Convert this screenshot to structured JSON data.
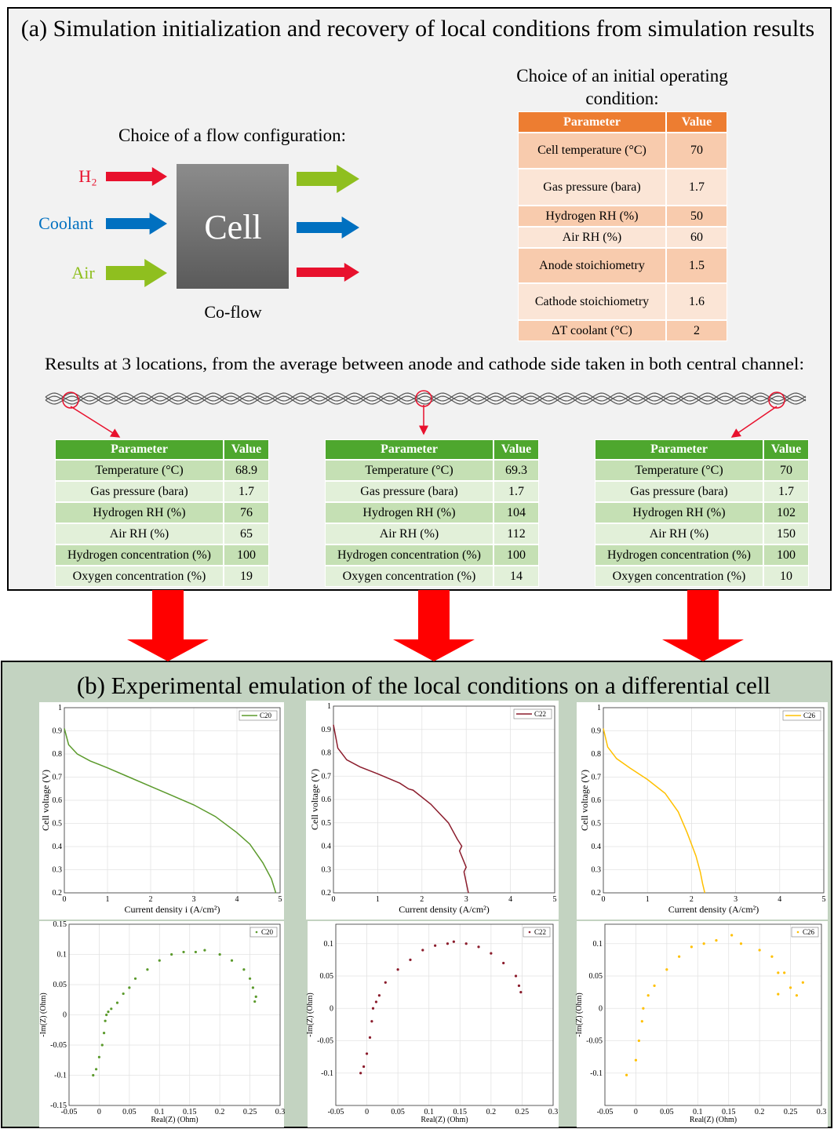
{
  "panel_a": {
    "title": "(a) Simulation initialization and recovery of local conditions from simulation results",
    "flow_heading": "Choice of a flow configuration:",
    "inlets": [
      "H₂",
      "Coolant",
      "Air"
    ],
    "cell_label": "Cell",
    "flow_type": "Co-flow",
    "operating_heading": "Choice of an initial operating condition:",
    "operating_table": {
      "header": [
        "Parameter",
        "Value"
      ],
      "rows": [
        [
          "Cell temperature (°C)",
          70
        ],
        [
          "Gas pressure (bara)",
          1.7
        ],
        [
          "Hydrogen RH (%)",
          50
        ],
        [
          "Air RH (%)",
          60
        ],
        [
          "Anode stoichiometry",
          1.5
        ],
        [
          "Cathode stoichiometry",
          1.6
        ],
        [
          "ΔT coolant (°C)",
          2
        ]
      ]
    },
    "results_heading": "Results at 3 locations, from the average between anode and cathode side taken in both central channel:",
    "location_tables": [
      {
        "header": [
          "Parameter",
          "Value"
        ],
        "rows": [
          [
            "Temperature (°C)",
            68.9
          ],
          [
            "Gas pressure (bara)",
            1.7
          ],
          [
            "Hydrogen RH (%)",
            76
          ],
          [
            "Air RH (%)",
            65
          ],
          [
            "Hydrogen concentration (%)",
            100
          ],
          [
            "Oxygen concentration (%)",
            19
          ]
        ]
      },
      {
        "header": [
          "Parameter",
          "Value"
        ],
        "rows": [
          [
            "Temperature (°C)",
            69.3
          ],
          [
            "Gas pressure (bara)",
            1.7
          ],
          [
            "Hydrogen RH (%)",
            104
          ],
          [
            "Air RH (%)",
            112
          ],
          [
            "Hydrogen concentration (%)",
            100
          ],
          [
            "Oxygen concentration (%)",
            14
          ]
        ]
      },
      {
        "header": [
          "Parameter",
          "Value"
        ],
        "rows": [
          [
            "Temperature (°C)",
            70
          ],
          [
            "Gas pressure (bara)",
            1.7
          ],
          [
            "Hydrogen RH (%)",
            102
          ],
          [
            "Air RH (%)",
            150
          ],
          [
            "Hydrogen concentration (%)",
            100
          ],
          [
            "Oxygen concentration (%)",
            10
          ]
        ]
      }
    ]
  },
  "panel_b": {
    "title": "(b) Experimental emulation of the local conditions on a differential cell"
  },
  "chart_data": [
    {
      "type": "line",
      "xlabel": "Current density i (A/cm²)",
      "ylabel": "Cell voltage (V)",
      "xlim": [
        0,
        5
      ],
      "ylim": [
        0.2,
        1
      ],
      "xticks": [
        0,
        1,
        2,
        3,
        4,
        5
      ],
      "yticks": [
        0.2,
        0.3,
        0.4,
        0.5,
        0.6,
        0.7,
        0.8,
        0.9,
        1
      ],
      "grid": true,
      "legend": "upper right",
      "x": [
        0,
        0.1,
        0.3,
        0.6,
        1,
        1.5,
        2,
        2.5,
        3,
        3.5,
        4,
        4.3,
        4.6,
        4.8,
        4.9
      ],
      "series": [
        {
          "name": "C20",
          "color": "#5b9a2c",
          "values": [
            0.91,
            0.84,
            0.8,
            0.77,
            0.74,
            0.7,
            0.66,
            0.62,
            0.58,
            0.53,
            0.46,
            0.41,
            0.33,
            0.26,
            0.2
          ]
        }
      ]
    },
    {
      "type": "line",
      "xlabel": "Current density (A/cm²)",
      "ylabel": "Cell voltage (V)",
      "xlim": [
        0,
        5
      ],
      "ylim": [
        0.2,
        1
      ],
      "xticks": [
        0,
        1,
        2,
        3,
        4,
        5
      ],
      "yticks": [
        0.2,
        0.3,
        0.4,
        0.5,
        0.6,
        0.7,
        0.8,
        0.9,
        1
      ],
      "grid": true,
      "legend": "upper right",
      "x": [
        0,
        0.1,
        0.3,
        0.6,
        1,
        1.5,
        1.7,
        1.8,
        2.2,
        2.6,
        2.8,
        2.9,
        2.85,
        3,
        2.95,
        3.05
      ],
      "series": [
        {
          "name": "C22",
          "color": "#8b1c2c",
          "values": [
            0.92,
            0.82,
            0.77,
            0.74,
            0.71,
            0.67,
            0.645,
            0.64,
            0.58,
            0.5,
            0.43,
            0.4,
            0.38,
            0.31,
            0.29,
            0.2
          ]
        }
      ]
    },
    {
      "type": "line",
      "xlabel": "Current density (A/cm²)",
      "ylabel": "Cell voltage (V)",
      "xlim": [
        0,
        5
      ],
      "ylim": [
        0.2,
        1
      ],
      "xticks": [
        0,
        1,
        2,
        3,
        4,
        5
      ],
      "yticks": [
        0.2,
        0.3,
        0.4,
        0.5,
        0.6,
        0.7,
        0.8,
        0.9,
        1
      ],
      "grid": true,
      "legend": "upper right",
      "x": [
        0,
        0.1,
        0.3,
        0.6,
        1,
        1.4,
        1.7,
        1.9,
        2.1,
        2.2,
        2.25,
        2.3
      ],
      "series": [
        {
          "name": "C26",
          "color": "#ffc000",
          "values": [
            0.91,
            0.83,
            0.78,
            0.74,
            0.69,
            0.63,
            0.55,
            0.46,
            0.36,
            0.29,
            0.24,
            0.2
          ]
        }
      ]
    },
    {
      "type": "scatter",
      "xlabel": "Real(Z) (Ohm)",
      "ylabel": "-Im(Z) (Ohm)",
      "xlim": [
        -0.05,
        0.3
      ],
      "ylim": [
        -0.15,
        0.15
      ],
      "xticks": [
        -0.05,
        0,
        0.05,
        0.1,
        0.15,
        0.2,
        0.25,
        0.3
      ],
      "yticks": [
        -0.15,
        -0.1,
        -0.05,
        0,
        0.05,
        0.1,
        0.15
      ],
      "grid": true,
      "legend": "upper right",
      "x": [
        -0.01,
        -0.005,
        0,
        0.005,
        0.008,
        0.01,
        0.012,
        0.015,
        0.02,
        0.03,
        0.04,
        0.05,
        0.06,
        0.08,
        0.1,
        0.12,
        0.14,
        0.16,
        0.175,
        0.2,
        0.22,
        0.24,
        0.25,
        0.255,
        0.26,
        0.258
      ],
      "series": [
        {
          "name": "C20",
          "color": "#5b9a2c",
          "values": [
            -0.1,
            -0.09,
            -0.07,
            -0.05,
            -0.03,
            -0.01,
            0,
            0.005,
            0.01,
            0.02,
            0.035,
            0.045,
            0.06,
            0.075,
            0.09,
            0.1,
            0.104,
            0.104,
            0.107,
            0.1,
            0.09,
            0.075,
            0.06,
            0.045,
            0.03,
            0.022
          ]
        }
      ]
    },
    {
      "type": "scatter",
      "xlabel": "Real(Z) (Ohm)",
      "ylabel": "-Im(Z) (Ohm)",
      "xlim": [
        -0.05,
        0.3
      ],
      "ylim": [
        -0.15,
        0.13
      ],
      "xticks": [
        -0.05,
        0,
        0.05,
        0.1,
        0.15,
        0.2,
        0.25,
        0.3
      ],
      "yticks": [
        -0.1,
        -0.05,
        0,
        0.05,
        0.1
      ],
      "grid": true,
      "legend": "upper right",
      "x": [
        -0.01,
        -0.005,
        0,
        0.005,
        0.008,
        0.01,
        0.015,
        0.02,
        0.03,
        0.05,
        0.07,
        0.09,
        0.11,
        0.13,
        0.14,
        0.16,
        0.18,
        0.2,
        0.22,
        0.24,
        0.245,
        0.248
      ],
      "series": [
        {
          "name": "C22",
          "color": "#8b1c2c",
          "values": [
            -0.1,
            -0.09,
            -0.07,
            -0.045,
            -0.02,
            0,
            0.01,
            0.02,
            0.04,
            0.06,
            0.075,
            0.09,
            0.097,
            0.1,
            0.103,
            0.1,
            0.095,
            0.085,
            0.07,
            0.05,
            0.035,
            0.025
          ]
        }
      ]
    },
    {
      "type": "scatter",
      "xlabel": "Real(Z) (Ohm)",
      "ylabel": "-Im(Z) (Ohm)",
      "xlim": [
        -0.05,
        0.3
      ],
      "ylim": [
        -0.15,
        0.13
      ],
      "xticks": [
        -0.05,
        0,
        0.05,
        0.1,
        0.15,
        0.2,
        0.25,
        0.3
      ],
      "yticks": [
        -0.1,
        -0.05,
        0,
        0.05,
        0.1
      ],
      "grid": true,
      "legend": "upper right",
      "x": [
        -0.015,
        0,
        0.005,
        0.01,
        0.012,
        0.02,
        0.03,
        0.05,
        0.07,
        0.09,
        0.11,
        0.13,
        0.155,
        0.17,
        0.2,
        0.22,
        0.23,
        0.24,
        0.23,
        0.25,
        0.26,
        0.27
      ],
      "series": [
        {
          "name": "C26",
          "color": "#ffc000",
          "values": [
            -0.103,
            -0.08,
            -0.05,
            -0.02,
            0,
            0.02,
            0.035,
            0.06,
            0.08,
            0.095,
            0.1,
            0.105,
            0.113,
            0.1,
            0.09,
            0.08,
            0.055,
            0.055,
            0.022,
            0.032,
            0.02,
            0.04
          ]
        }
      ]
    }
  ]
}
